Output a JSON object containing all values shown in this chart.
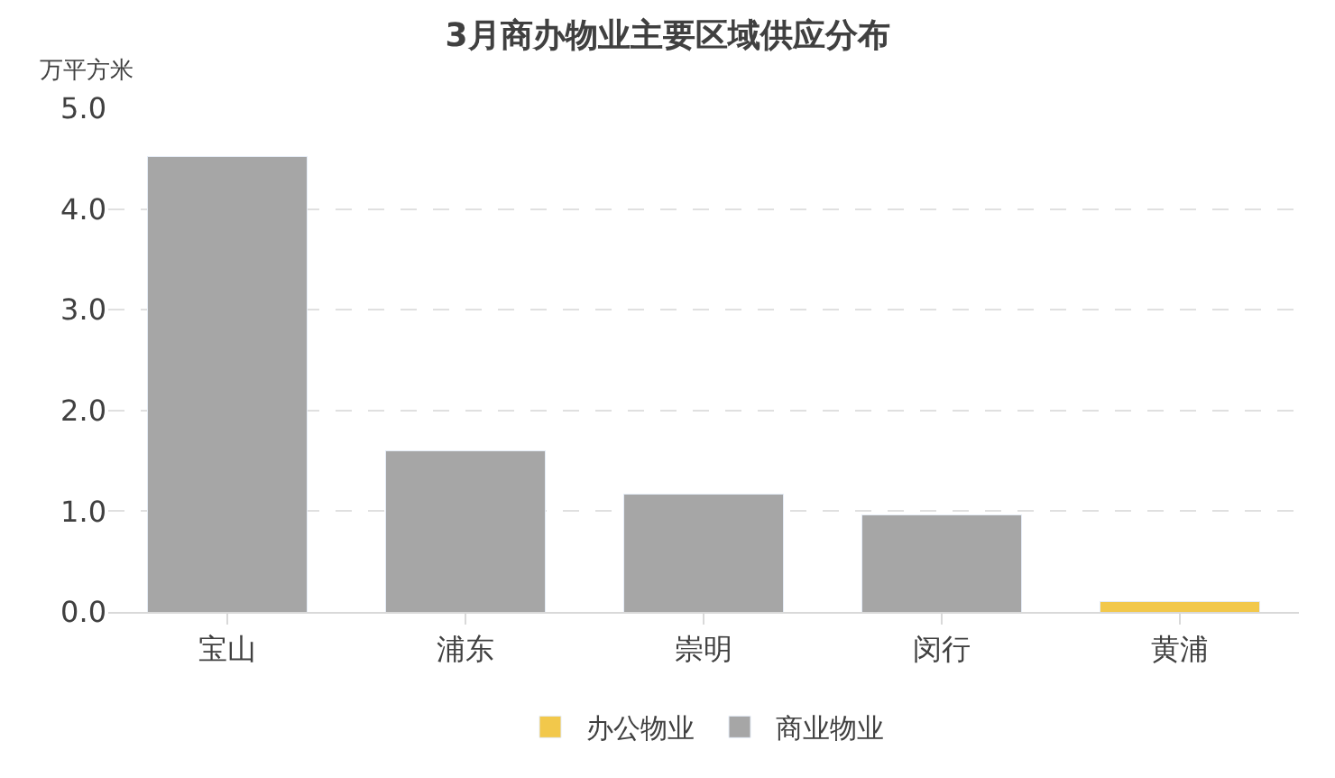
{
  "chart_data": {
    "type": "bar",
    "title": "3月商办物业主要区域供应分布",
    "ylabel": "万平方米",
    "categories": [
      "宝山",
      "浦东",
      "崇明",
      "闵行",
      "黄浦"
    ],
    "stacked": true,
    "series": [
      {
        "name": "商业物业",
        "color": "#a6a6a6",
        "values": [
          4.52,
          1.6,
          1.17,
          0.96,
          null
        ]
      },
      {
        "name": "办公物业",
        "color": "#f2c84b",
        "values": [
          null,
          null,
          null,
          null,
          0.1
        ]
      }
    ],
    "ylim": [
      0,
      5
    ],
    "yticks": [
      {
        "value": 0,
        "label": "0.0"
      },
      {
        "value": 1,
        "label": "1.0"
      },
      {
        "value": 2,
        "label": "2.0"
      },
      {
        "value": 3,
        "label": "3.0"
      },
      {
        "value": 4,
        "label": "4.0"
      },
      {
        "value": 5,
        "label": "5.0"
      }
    ],
    "grid": "y",
    "legend": "bottom"
  }
}
